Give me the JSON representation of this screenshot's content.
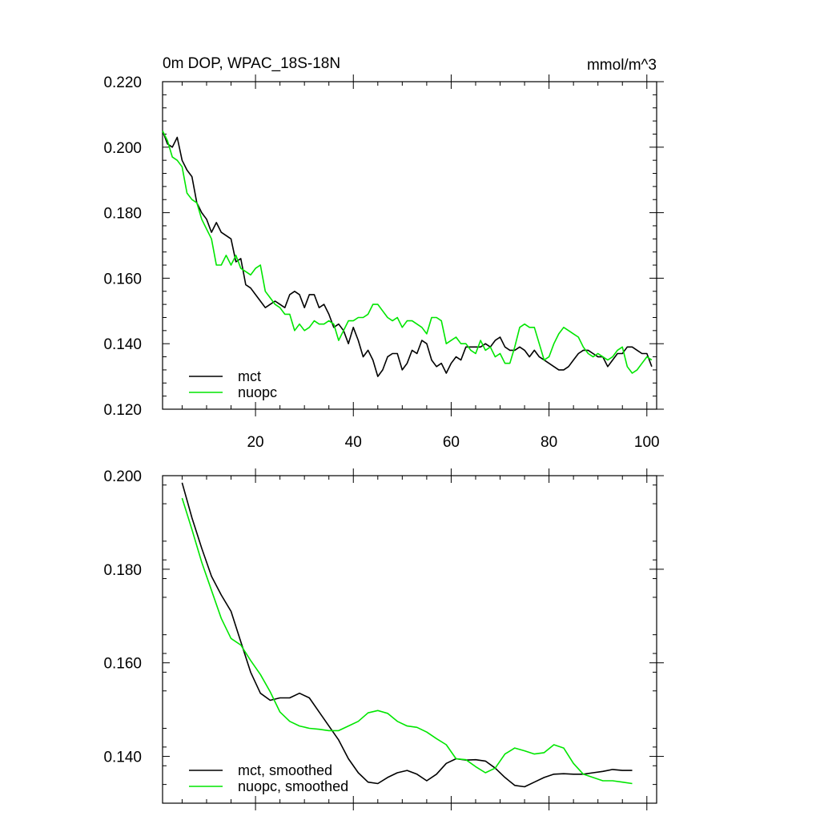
{
  "colors": {
    "mct": "#000000",
    "nuopc": "#00e600"
  },
  "chart_data": [
    {
      "type": "line",
      "title": "0m DOP, WPAC_18S-18N",
      "units_label": "mmol/m^3",
      "xlim": [
        1,
        102
      ],
      "ylim": [
        0.12,
        0.22
      ],
      "x_ticks": [
        20,
        40,
        60,
        80,
        100
      ],
      "x_tick_labels": [
        "20",
        "40",
        "60",
        "80",
        "100"
      ],
      "y_ticks": [
        0.12,
        0.14,
        0.16,
        0.18,
        0.2,
        0.22
      ],
      "y_tick_labels": [
        "0.120",
        "0.140",
        "0.160",
        "0.180",
        "0.200",
        "0.220"
      ],
      "legend_position": "bottom-left",
      "series": [
        {
          "name": "mct",
          "color": "#000000",
          "x": [
            1,
            2,
            3,
            4,
            5,
            6,
            7,
            8,
            9,
            10,
            11,
            12,
            13,
            14,
            15,
            16,
            17,
            18,
            19,
            20,
            21,
            22,
            23,
            24,
            25,
            26,
            27,
            28,
            29,
            30,
            31,
            32,
            33,
            34,
            35,
            36,
            37,
            38,
            39,
            40,
            41,
            42,
            43,
            44,
            45,
            46,
            47,
            48,
            49,
            50,
            51,
            52,
            53,
            54,
            55,
            56,
            57,
            58,
            59,
            60,
            61,
            62,
            63,
            64,
            65,
            66,
            67,
            68,
            69,
            70,
            71,
            72,
            73,
            74,
            75,
            76,
            77,
            78,
            79,
            80,
            81,
            82,
            83,
            84,
            85,
            86,
            87,
            88,
            89,
            90,
            91,
            92,
            93,
            94,
            95,
            96,
            97,
            98,
            99,
            100,
            101
          ],
          "y": [
            0.205,
            0.201,
            0.2,
            0.203,
            0.196,
            0.193,
            0.191,
            0.183,
            0.18,
            0.178,
            0.174,
            0.177,
            0.174,
            0.173,
            0.172,
            0.165,
            0.166,
            0.158,
            0.157,
            0.155,
            0.153,
            0.151,
            0.152,
            0.153,
            0.152,
            0.151,
            0.155,
            0.156,
            0.155,
            0.151,
            0.155,
            0.155,
            0.151,
            0.152,
            0.149,
            0.145,
            0.146,
            0.144,
            0.14,
            0.145,
            0.141,
            0.136,
            0.138,
            0.135,
            0.13,
            0.132,
            0.136,
            0.137,
            0.137,
            0.132,
            0.134,
            0.138,
            0.137,
            0.141,
            0.14,
            0.135,
            0.133,
            0.134,
            0.131,
            0.134,
            0.136,
            0.135,
            0.139,
            0.139,
            0.139,
            0.139,
            0.14,
            0.139,
            0.141,
            0.142,
            0.139,
            0.138,
            0.138,
            0.139,
            0.138,
            0.136,
            0.138,
            0.136,
            0.135,
            0.134,
            0.133,
            0.132,
            0.132,
            0.133,
            0.135,
            0.137,
            0.138,
            0.138,
            0.137,
            0.136,
            0.136,
            0.133,
            0.135,
            0.137,
            0.137,
            0.139,
            0.139,
            0.138,
            0.137,
            0.137,
            0.133
          ]
        },
        {
          "name": "nuopc",
          "color": "#00e600",
          "x": [
            1,
            2,
            3,
            4,
            5,
            6,
            7,
            8,
            9,
            10,
            11,
            12,
            13,
            14,
            15,
            16,
            17,
            18,
            19,
            20,
            21,
            22,
            23,
            24,
            25,
            26,
            27,
            28,
            29,
            30,
            31,
            32,
            33,
            34,
            35,
            36,
            37,
            38,
            39,
            40,
            41,
            42,
            43,
            44,
            45,
            46,
            47,
            48,
            49,
            50,
            51,
            52,
            53,
            54,
            55,
            56,
            57,
            58,
            59,
            60,
            61,
            62,
            63,
            64,
            65,
            66,
            67,
            68,
            69,
            70,
            71,
            72,
            73,
            74,
            75,
            76,
            77,
            78,
            79,
            80,
            81,
            82,
            83,
            84,
            85,
            86,
            87,
            88,
            89,
            90,
            91,
            92,
            93,
            94,
            95,
            96,
            97,
            98,
            99,
            100,
            101
          ],
          "y": [
            0.205,
            0.202,
            0.197,
            0.196,
            0.194,
            0.186,
            0.184,
            0.183,
            0.178,
            0.175,
            0.172,
            0.164,
            0.164,
            0.167,
            0.164,
            0.167,
            0.163,
            0.162,
            0.161,
            0.163,
            0.164,
            0.156,
            0.154,
            0.152,
            0.151,
            0.149,
            0.149,
            0.144,
            0.146,
            0.144,
            0.145,
            0.147,
            0.146,
            0.146,
            0.147,
            0.146,
            0.141,
            0.144,
            0.147,
            0.147,
            0.148,
            0.148,
            0.149,
            0.152,
            0.152,
            0.15,
            0.148,
            0.147,
            0.148,
            0.145,
            0.147,
            0.147,
            0.146,
            0.145,
            0.143,
            0.148,
            0.148,
            0.147,
            0.14,
            0.141,
            0.142,
            0.14,
            0.14,
            0.138,
            0.137,
            0.141,
            0.138,
            0.139,
            0.136,
            0.137,
            0.134,
            0.134,
            0.139,
            0.145,
            0.146,
            0.145,
            0.145,
            0.14,
            0.135,
            0.136,
            0.14,
            0.143,
            0.145,
            0.144,
            0.143,
            0.142,
            0.139,
            0.137,
            0.136,
            0.137,
            0.136,
            0.135,
            0.136,
            0.138,
            0.139,
            0.133,
            0.131,
            0.132,
            0.134,
            0.136,
            0.135
          ]
        }
      ]
    },
    {
      "type": "line",
      "xlim": [
        1,
        102
      ],
      "ylim": [
        0.13,
        0.2
      ],
      "x_ticks": [
        20,
        40,
        60,
        80,
        100
      ],
      "y_ticks": [
        0.14,
        0.16,
        0.18,
        0.2
      ],
      "y_tick_labels": [
        "0.140",
        "0.160",
        "0.180",
        "0.200"
      ],
      "legend_position": "bottom-left",
      "series": [
        {
          "name": "mct, smoothed",
          "color": "#000000",
          "x": [
            5,
            7,
            9,
            11,
            13,
            15,
            17,
            19,
            21,
            23,
            25,
            27,
            29,
            31,
            33,
            35,
            37,
            39,
            41,
            43,
            45,
            47,
            49,
            51,
            53,
            55,
            57,
            59,
            61,
            63,
            65,
            67,
            69,
            71,
            73,
            75,
            77,
            79,
            81,
            83,
            85,
            87,
            89,
            91,
            93,
            95,
            97
          ],
          "y": [
            0.1985,
            0.191,
            0.1845,
            0.1785,
            0.1745,
            0.171,
            0.1645,
            0.158,
            0.1535,
            0.152,
            0.1525,
            0.1525,
            0.1535,
            0.1525,
            0.1495,
            0.1465,
            0.1435,
            0.1395,
            0.1365,
            0.1345,
            0.1342,
            0.1355,
            0.1365,
            0.137,
            0.1362,
            0.1348,
            0.1362,
            0.1385,
            0.1395,
            0.1392,
            0.1393,
            0.139,
            0.1375,
            0.1355,
            0.1338,
            0.1335,
            0.1345,
            0.1355,
            0.1362,
            0.1363,
            0.1362,
            0.1362,
            0.1365,
            0.1368,
            0.1372,
            0.137,
            0.137
          ]
        },
        {
          "name": "nuopc, smoothed",
          "color": "#00e600",
          "x": [
            5,
            7,
            9,
            11,
            13,
            15,
            17,
            19,
            21,
            23,
            25,
            27,
            29,
            31,
            33,
            35,
            37,
            39,
            41,
            43,
            45,
            47,
            49,
            51,
            53,
            55,
            57,
            59,
            61,
            63,
            65,
            67,
            69,
            71,
            73,
            75,
            77,
            79,
            81,
            83,
            85,
            87,
            89,
            91,
            93,
            95,
            97
          ],
          "y": [
            0.1952,
            0.1885,
            0.1815,
            0.1755,
            0.1695,
            0.1652,
            0.1638,
            0.1605,
            0.1575,
            0.1538,
            0.1495,
            0.1475,
            0.1465,
            0.146,
            0.1458,
            0.1455,
            0.1455,
            0.1465,
            0.1475,
            0.1493,
            0.1498,
            0.1492,
            0.1475,
            0.1465,
            0.1462,
            0.1452,
            0.1438,
            0.1425,
            0.1395,
            0.1393,
            0.1378,
            0.1365,
            0.1375,
            0.1405,
            0.1418,
            0.1412,
            0.1405,
            0.1408,
            0.1425,
            0.1418,
            0.1385,
            0.1362,
            0.1355,
            0.1348,
            0.1348,
            0.1345,
            0.1342
          ]
        }
      ]
    }
  ]
}
